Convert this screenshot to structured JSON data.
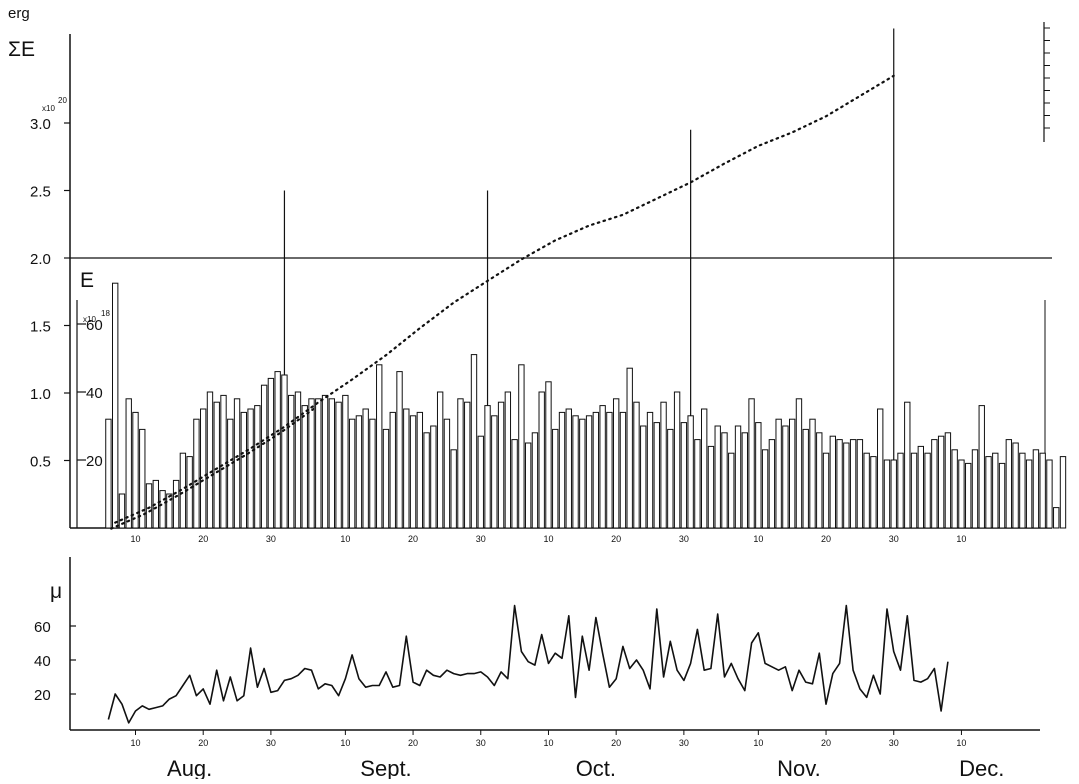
{
  "chart_data": [
    {
      "type": "bar",
      "panel": "upper",
      "y_label": "E",
      "y_label_exponent": "x10",
      "y_label_exponent_power": "18",
      "y_ticks": [
        "20",
        "40",
        "60"
      ],
      "y_tick_values": [
        20,
        40,
        60
      ],
      "categories": [
        "10",
        "20",
        "30",
        "10",
        "20",
        "30",
        "10",
        "20",
        "30",
        "10",
        "20",
        "30",
        "10"
      ],
      "x_day_start": 6,
      "bars": [
        32,
        72,
        10,
        38,
        34,
        29,
        13,
        14,
        11,
        10,
        14,
        22,
        21,
        32,
        35,
        40,
        37,
        39,
        32,
        38,
        34,
        35,
        36,
        42,
        44,
        46,
        45,
        39,
        40,
        36,
        38,
        38,
        39,
        38,
        37,
        39,
        32,
        33,
        35,
        32,
        48,
        29,
        34,
        46,
        35,
        33,
        34,
        28,
        30,
        40,
        32,
        23,
        38,
        37,
        51,
        27,
        36,
        33,
        37,
        40,
        26,
        48,
        25,
        28,
        40,
        43,
        29,
        34,
        35,
        33,
        32,
        33,
        34,
        36,
        34,
        38,
        34,
        47,
        37,
        30,
        34,
        31,
        37,
        29,
        40,
        31,
        33,
        26,
        35,
        24,
        30,
        28,
        22,
        30,
        28,
        38,
        31,
        23,
        26,
        32,
        30,
        32,
        38,
        29,
        32,
        28,
        22,
        27,
        26,
        25,
        26,
        26,
        22,
        21,
        35,
        20,
        20,
        22,
        37,
        22,
        24,
        22,
        26,
        27,
        28,
        23,
        20,
        19,
        23,
        36,
        21,
        22,
        19,
        26,
        25,
        22,
        20,
        23,
        22,
        20,
        6,
        21
      ],
      "series": [
        {
          "name": "ΣE",
          "axis_label": "ΣE",
          "axis_unit": "erg",
          "axis_exponent": "x10",
          "axis_exponent_power": "20",
          "axis_ticks": [
            "0.5",
            "1.0",
            "1.5",
            "2.0",
            "2.5",
            "3.0"
          ],
          "axis_tick_values": [
            0.5,
            1.0,
            1.5,
            2.0,
            2.5,
            3.0
          ],
          "x": [
            7,
            12,
            17,
            22,
            27,
            32,
            37,
            42,
            47,
            52,
            57,
            62,
            67,
            72,
            77,
            82,
            87,
            92,
            97,
            102,
            107,
            112,
            117,
            122
          ],
          "values": [
            0.04,
            0.15,
            0.29,
            0.44,
            0.59,
            0.75,
            0.93,
            1.1,
            1.28,
            1.48,
            1.67,
            1.83,
            1.99,
            2.13,
            2.24,
            2.32,
            2.44,
            2.56,
            2.7,
            2.83,
            2.93,
            3.05,
            3.2,
            3.35
          ]
        }
      ],
      "markers": [
        {
          "day": 32,
          "top": 2.5
        },
        {
          "day": 62,
          "top": 2.5
        },
        {
          "day": 92,
          "top": 2.95
        },
        {
          "day": 122,
          "top": 3.7
        }
      ],
      "reference_line": 2.0
    },
    {
      "type": "line",
      "panel": "lower",
      "y_label": "μ",
      "y_ticks": [
        "20",
        "40",
        "60"
      ],
      "y_tick_values": [
        20,
        40,
        60
      ],
      "x_day_start": 6,
      "series": [
        {
          "values": [
            5,
            20,
            14,
            3,
            10,
            13,
            11,
            12,
            13,
            17,
            19,
            25,
            31,
            19,
            23,
            14,
            34,
            16,
            30,
            16,
            19,
            47,
            24,
            35,
            21,
            22,
            28,
            29,
            31,
            35,
            34,
            23,
            26,
            25,
            19,
            29,
            43,
            29,
            24,
            25,
            25,
            33,
            24,
            25,
            54,
            27,
            25,
            34,
            31,
            30,
            34,
            32,
            31,
            32,
            32,
            33,
            30,
            25,
            33,
            29,
            72,
            45,
            39,
            37,
            55,
            38,
            44,
            41,
            66,
            18,
            54,
            34,
            65,
            44,
            24,
            29,
            48,
            35,
            40,
            34,
            23,
            70,
            30,
            51,
            34,
            28,
            38,
            58,
            34,
            35,
            67,
            30,
            38,
            29,
            22,
            50,
            56,
            38,
            36,
            34,
            36,
            22,
            34,
            27,
            26,
            44,
            14,
            32,
            38,
            72,
            34,
            23,
            18,
            31,
            20,
            70,
            45,
            34,
            66,
            28,
            27,
            29,
            35,
            10,
            39
          ]
        }
      ]
    }
  ],
  "month_labels": [
    "Aug.",
    "Sept.",
    "Oct.",
    "Nov.",
    "Dec."
  ]
}
